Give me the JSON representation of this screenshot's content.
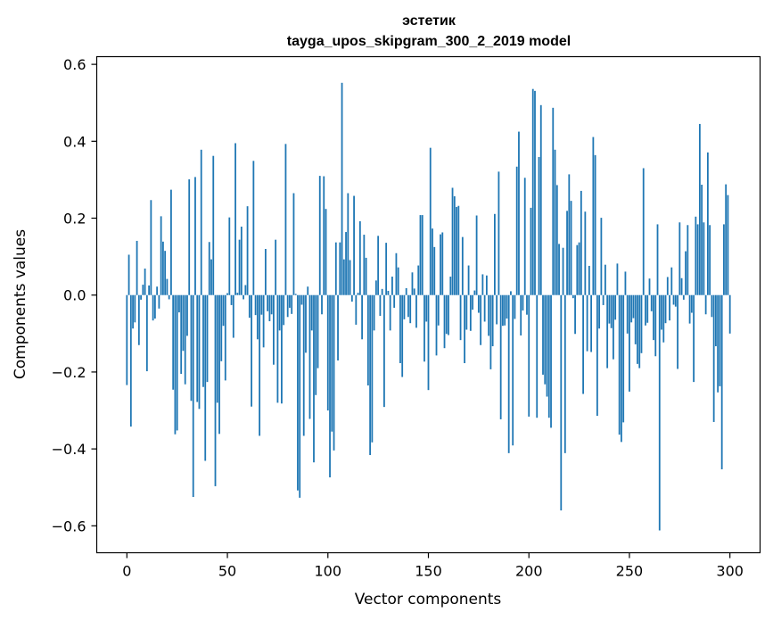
{
  "chart_data": {
    "type": "bar",
    "title": "эстетик",
    "subtitle": "tayga_upos_skipgram_300_2_2019 model",
    "xlabel": "Vector components",
    "ylabel": "Components values",
    "xlim": [
      -15,
      315
    ],
    "ylim": [
      -0.67,
      0.62
    ],
    "xticks": [
      0,
      50,
      100,
      150,
      200,
      250,
      300
    ],
    "yticks": [
      -0.6,
      -0.4,
      -0.2,
      0.0,
      0.2,
      0.4,
      0.6
    ],
    "xtick_labels": [
      "0",
      "50",
      "100",
      "150",
      "200",
      "250",
      "300"
    ],
    "ytick_labels": [
      "−0.6",
      "−0.4",
      "−0.2",
      "0.0",
      "0.2",
      "0.4",
      "0.6"
    ],
    "bar_color": "#1f77b4",
    "values": [
      -0.234,
      0.105,
      -0.342,
      -0.087,
      -0.071,
      0.141,
      -0.13,
      -0.012,
      0.027,
      0.069,
      -0.198,
      0.025,
      0.247,
      -0.066,
      -0.061,
      0.022,
      -0.035,
      0.205,
      0.139,
      0.115,
      0.042,
      -0.011,
      0.274,
      -0.246,
      -0.362,
      -0.352,
      -0.045,
      -0.205,
      -0.145,
      -0.232,
      -0.106,
      0.301,
      -0.275,
      -0.525,
      0.307,
      -0.278,
      -0.296,
      0.378,
      -0.239,
      -0.431,
      -0.226,
      0.138,
      0.093,
      0.362,
      -0.497,
      -0.28,
      -0.361,
      -0.172,
      -0.08,
      -0.222,
      0.005,
      0.202,
      -0.026,
      -0.111,
      0.395,
      0.006,
      0.144,
      0.178,
      -0.011,
      0.026,
      0.231,
      -0.059,
      -0.29,
      0.349,
      -0.052,
      -0.115,
      -0.366,
      -0.051,
      -0.136,
      0.12,
      -0.042,
      -0.068,
      -0.05,
      -0.181,
      0.144,
      -0.28,
      -0.092,
      -0.282,
      -0.078,
      0.393,
      -0.057,
      -0.033,
      -0.049,
      0.265,
      0.003,
      -0.508,
      -0.527,
      -0.025,
      -0.366,
      -0.15,
      0.022,
      -0.322,
      -0.092,
      -0.435,
      -0.26,
      -0.19,
      0.31,
      -0.05,
      0.309,
      0.224,
      -0.3,
      -0.474,
      -0.355,
      -0.404,
      0.137,
      -0.17,
      0.137,
      0.552,
      0.093,
      0.164,
      0.265,
      0.091,
      -0.017,
      0.258,
      -0.077,
      0.006,
      0.192,
      -0.115,
      0.157,
      0.097,
      -0.235,
      -0.416,
      -0.383,
      -0.092,
      0.038,
      0.154,
      -0.054,
      0.016,
      -0.291,
      0.136,
      0.011,
      -0.092,
      0.048,
      -0.033,
      0.109,
      0.072,
      -0.177,
      -0.213,
      -0.063,
      0.018,
      -0.057,
      -0.073,
      0.059,
      0.017,
      -0.085,
      0.077,
      0.208,
      0.208,
      -0.173,
      -0.069,
      -0.247,
      0.383,
      0.173,
      0.125,
      -0.157,
      -0.079,
      0.158,
      0.163,
      -0.138,
      -0.101,
      -0.104,
      0.048,
      0.279,
      0.257,
      0.229,
      0.232,
      -0.117,
      0.151,
      -0.177,
      -0.09,
      0.077,
      -0.093,
      -0.038,
      0.012,
      0.207,
      -0.046,
      -0.13,
      0.054,
      -0.069,
      0.051,
      -0.106,
      -0.193,
      -0.133,
      0.211,
      -0.076,
      0.321,
      -0.323,
      -0.08,
      -0.079,
      -0.061,
      -0.411,
      0.01,
      -0.391,
      -0.062,
      0.334,
      0.425,
      -0.105,
      -0.04,
      0.305,
      -0.051,
      -0.316,
      0.227,
      0.536,
      0.531,
      -0.319,
      0.359,
      0.494,
      -0.207,
      -0.232,
      -0.264,
      -0.319,
      -0.345,
      0.487,
      0.378,
      0.286,
      0.133,
      -0.56,
      0.123,
      -0.411,
      0.219,
      0.314,
      0.245,
      -0.008,
      -0.101,
      0.13,
      0.137,
      0.271,
      -0.257,
      0.217,
      -0.146,
      0.076,
      -0.148,
      0.411,
      0.364,
      -0.314,
      -0.087,
      0.201,
      -0.026,
      0.079,
      -0.19,
      -0.074,
      -0.086,
      -0.167,
      -0.064,
      0.082,
      -0.363,
      -0.382,
      -0.331,
      0.061,
      -0.1,
      -0.251,
      -0.071,
      -0.06,
      -0.128,
      -0.179,
      -0.19,
      -0.151,
      0.33,
      -0.079,
      -0.072,
      0.043,
      -0.042,
      -0.117,
      -0.159,
      0.184,
      -0.612,
      -0.09,
      -0.123,
      -0.073,
      0.047,
      -0.066,
      0.072,
      -0.025,
      -0.03,
      -0.192,
      0.189,
      0.044,
      -0.012,
      0.114,
      0.182,
      -0.074,
      -0.046,
      -0.226,
      0.204,
      0.184,
      0.445,
      0.287,
      0.189,
      -0.05,
      0.371,
      0.182,
      -0.057,
      -0.33,
      -0.133,
      -0.253,
      -0.237,
      -0.453,
      0.184,
      0.288,
      0.26,
      -0.1
    ]
  }
}
